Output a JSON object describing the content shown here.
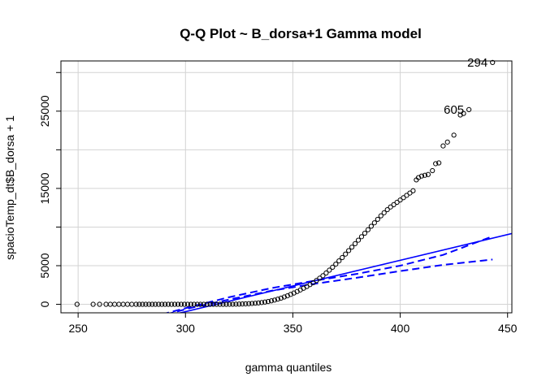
{
  "chart_data": {
    "type": "scatter",
    "title": "Q-Q Plot ~ B_dorsa+1 Gamma model",
    "xlabel": "gamma quantiles",
    "ylabel": "spacioTemp_dt$B_dorsa + 1",
    "xlim": [
      242,
      452
    ],
    "ylim": [
      -1100,
      31500
    ],
    "x_ticks": [
      250,
      300,
      350,
      400,
      450
    ],
    "y_ticks": [
      0,
      5000,
      10000,
      15000,
      20000,
      25000,
      30000
    ],
    "y_tick_labels": [
      "0",
      "5000",
      "",
      "15000",
      "",
      "25000",
      ""
    ],
    "grid": true,
    "point_color": "#000000",
    "line_color": "#0000ff",
    "reference_line": {
      "slope": 66.5,
      "intercept": -20900
    },
    "confidence_envelope": {
      "upper": [
        [
          289,
          -1300
        ],
        [
          300,
          -500
        ],
        [
          320,
          900
        ],
        [
          340,
          2100
        ],
        [
          360,
          3050
        ],
        [
          380,
          3950
        ],
        [
          400,
          5000
        ],
        [
          420,
          6400
        ],
        [
          443,
          8800
        ]
      ],
      "lower": [
        [
          291,
          -1300
        ],
        [
          302,
          -500
        ],
        [
          320,
          600
        ],
        [
          340,
          1750
        ],
        [
          360,
          2650
        ],
        [
          380,
          3450
        ],
        [
          400,
          4300
        ],
        [
          420,
          5100
        ],
        [
          443,
          5800
        ]
      ]
    },
    "annotations": [
      {
        "text": "294",
        "x": 443,
        "y": 31300
      },
      {
        "text": "605",
        "x": 432,
        "y": 25200
      }
    ],
    "points": [
      [
        249.5,
        1
      ],
      [
        257,
        1
      ],
      [
        260,
        1
      ],
      [
        263,
        1
      ],
      [
        265,
        1
      ],
      [
        267,
        1
      ],
      [
        269,
        1
      ],
      [
        271,
        1
      ],
      [
        273,
        1
      ],
      [
        275,
        1
      ],
      [
        277,
        1
      ],
      [
        278.5,
        1
      ],
      [
        280,
        1
      ],
      [
        281.5,
        1
      ],
      [
        283,
        1
      ],
      [
        284.5,
        1
      ],
      [
        286,
        1
      ],
      [
        287.5,
        1
      ],
      [
        289,
        1
      ],
      [
        290.5,
        1
      ],
      [
        292,
        1
      ],
      [
        293.5,
        1
      ],
      [
        295,
        1
      ],
      [
        296.5,
        1
      ],
      [
        298,
        1
      ],
      [
        299.5,
        1
      ],
      [
        301,
        1
      ],
      [
        302.5,
        1
      ],
      [
        304,
        1
      ],
      [
        305.5,
        1
      ],
      [
        307,
        1
      ],
      [
        308.5,
        1
      ],
      [
        310,
        1
      ],
      [
        311.5,
        1
      ],
      [
        313,
        1
      ],
      [
        314.5,
        1
      ],
      [
        316,
        1
      ],
      [
        317.5,
        1
      ],
      [
        319,
        1
      ],
      [
        320.5,
        5
      ],
      [
        322,
        10
      ],
      [
        323.5,
        20
      ],
      [
        325,
        30
      ],
      [
        326.5,
        45
      ],
      [
        328,
        60
      ],
      [
        329.5,
        80
      ],
      [
        331,
        110
      ],
      [
        332.5,
        140
      ],
      [
        334,
        180
      ],
      [
        335.5,
        230
      ],
      [
        337,
        290
      ],
      [
        338.5,
        360
      ],
      [
        340,
        450
      ],
      [
        341.5,
        550
      ],
      [
        343,
        670
      ],
      [
        344.5,
        800
      ],
      [
        346,
        950
      ],
      [
        347.5,
        1100
      ],
      [
        349,
        1280
      ],
      [
        350.5,
        1460
      ],
      [
        352,
        1660
      ],
      [
        353.5,
        1860
      ],
      [
        355,
        2080
      ],
      [
        356.5,
        2300
      ],
      [
        358,
        2550
      ],
      [
        359.5,
        2800
      ],
      [
        361,
        3080
      ],
      [
        362.5,
        3380
      ],
      [
        364,
        3700
      ],
      [
        365.5,
        4050
      ],
      [
        367,
        4420
      ],
      [
        368.5,
        4800
      ],
      [
        370,
        5200
      ],
      [
        371.5,
        5620
      ],
      [
        373,
        6050
      ],
      [
        374.5,
        6500
      ],
      [
        376,
        6950
      ],
      [
        377.5,
        7400
      ],
      [
        379,
        7850
      ],
      [
        380.5,
        8300
      ],
      [
        382,
        8750
      ],
      [
        383.5,
        9200
      ],
      [
        385,
        9650
      ],
      [
        386.5,
        10100
      ],
      [
        388,
        10550
      ],
      [
        389.5,
        11000
      ],
      [
        391,
        11450
      ],
      [
        392.5,
        11850
      ],
      [
        394,
        12250
      ],
      [
        395.5,
        12600
      ],
      [
        397,
        12900
      ],
      [
        398.5,
        13200
      ],
      [
        400,
        13500
      ],
      [
        401.5,
        13800
      ],
      [
        403,
        14100
      ],
      [
        404.5,
        14400
      ],
      [
        406,
        14700
      ],
      [
        407.5,
        16100
      ],
      [
        408.5,
        16400
      ],
      [
        410,
        16600
      ],
      [
        411.5,
        16700
      ],
      [
        413,
        16800
      ],
      [
        415,
        17300
      ],
      [
        416.5,
        18200
      ],
      [
        418,
        18300
      ],
      [
        420,
        20500
      ],
      [
        422,
        21000
      ],
      [
        425,
        21900
      ],
      [
        428,
        24500
      ],
      [
        429.5,
        24700
      ],
      [
        432,
        25200
      ],
      [
        443,
        31300
      ]
    ]
  }
}
